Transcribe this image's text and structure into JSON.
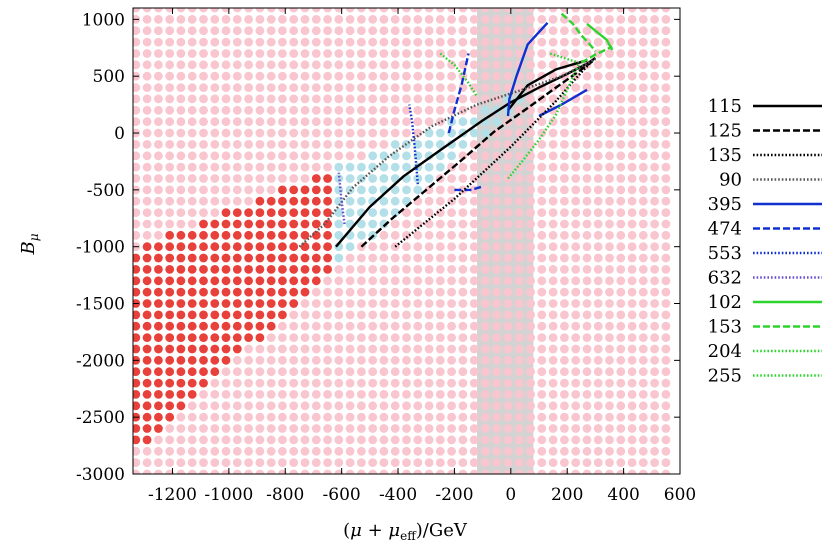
{
  "chart_data": {
    "type": "scatter",
    "title": "",
    "xlabel_parts": [
      "(",
      "μ",
      " + ",
      "μ",
      "eff",
      ")/GeV"
    ],
    "ylabel_parts": [
      "B",
      "μ"
    ],
    "xlim": [
      -1340,
      600
    ],
    "ylim": [
      -3000,
      1100
    ],
    "xticks": [
      -1200,
      -1000,
      -800,
      -600,
      -400,
      -200,
      0,
      200,
      400,
      600
    ],
    "xtick_labels": [
      "-1200",
      "-1000",
      "-800",
      "-600",
      "-400",
      "-200",
      "0",
      "200",
      "400",
      "600"
    ],
    "yticks": [
      -3000,
      -2500,
      -2000,
      -1500,
      -1000,
      -500,
      0,
      500,
      1000
    ],
    "ytick_labels": [
      "-3000",
      "-2500",
      "-2000",
      "-1500",
      "-1000",
      "-500",
      "0",
      "500",
      "1000"
    ],
    "grid": false,
    "legend_position": "right",
    "shaded_band": {
      "x_from": -120,
      "x_to": 80,
      "color": "#c8c8c8"
    },
    "scan": {
      "x_start": -1330,
      "x_step": 40,
      "x_count": 48,
      "y_start": -3000,
      "y_step": 100,
      "y_count": 42,
      "colors": {
        "excluded": "#f9c5cf",
        "red": "#e8413b",
        "purple": "#9b30e0",
        "blue": "#b3dfe8"
      }
    },
    "series": [
      {
        "name": "115",
        "color": "#000000",
        "dash": "solid",
        "points": [
          [
            -620,
            -1000
          ],
          [
            -500,
            -650
          ],
          [
            -380,
            -380
          ],
          [
            -250,
            -150
          ],
          [
            -100,
            110
          ],
          [
            0,
            270
          ],
          [
            100,
            400
          ],
          [
            200,
            520
          ],
          [
            270,
            610
          ],
          [
            300,
            660
          ]
        ]
      },
      {
        "name": "125",
        "color": "#000000",
        "dash": "dashed",
        "points": [
          [
            -530,
            -1000
          ],
          [
            -420,
            -750
          ],
          [
            -300,
            -500
          ],
          [
            -180,
            -250
          ],
          [
            -60,
            10
          ],
          [
            60,
            220
          ],
          [
            160,
            400
          ],
          [
            240,
            540
          ],
          [
            300,
            650
          ]
        ]
      },
      {
        "name": "135",
        "color": "#000000",
        "dash": "dotted",
        "points": [
          [
            -410,
            -1000
          ],
          [
            -300,
            -780
          ],
          [
            -200,
            -580
          ],
          [
            -100,
            -350
          ],
          [
            0,
            -120
          ],
          [
            80,
            80
          ],
          [
            160,
            280
          ],
          [
            230,
            480
          ],
          [
            290,
            640
          ]
        ]
      },
      {
        "name": "90",
        "color": "#555555",
        "dash": "dotted",
        "points": [
          [
            -750,
            -1000
          ],
          [
            -660,
            -800
          ],
          [
            -560,
            -480
          ],
          [
            -430,
            -200
          ],
          [
            -280,
            60
          ],
          [
            -120,
            250
          ],
          [
            40,
            380
          ],
          [
            180,
            500
          ],
          [
            300,
            650
          ]
        ]
      },
      {
        "name": "395",
        "color": "#1030d0",
        "dash": "solid",
        "points": [
          [
            -10,
            150
          ],
          [
            -5,
            300
          ],
          [
            20,
            500
          ],
          [
            60,
            780
          ],
          [
            130,
            970
          ]
        ]
      },
      {
        "name": "474",
        "color": "#1030d0",
        "dash": "dashed",
        "points": [
          [
            -220,
            0
          ],
          [
            -200,
            200
          ],
          [
            -175,
            420
          ],
          [
            -150,
            700
          ]
        ]
      },
      {
        "name": "553",
        "color": "#1030d0",
        "dash": "dotted",
        "points": [
          [
            -330,
            -450
          ],
          [
            -340,
            -150
          ],
          [
            -350,
            100
          ],
          [
            -360,
            250
          ]
        ]
      },
      {
        "name": "632",
        "color": "#6a4fd0",
        "dash": "dotted",
        "points": [
          [
            -590,
            -800
          ],
          [
            -600,
            -600
          ],
          [
            -610,
            -350
          ]
        ]
      },
      {
        "name": "102",
        "color": "#2ed42e",
        "dash": "solid",
        "points": [
          [
            270,
            960
          ],
          [
            310,
            880
          ],
          [
            340,
            820
          ],
          [
            360,
            730
          ]
        ]
      },
      {
        "name": "153",
        "color": "#2ed42e",
        "dash": "dashed",
        "points": [
          [
            180,
            1050
          ],
          [
            220,
            960
          ],
          [
            250,
            860
          ],
          [
            280,
            780
          ],
          [
            300,
            720
          ]
        ]
      },
      {
        "name": "204",
        "color": "#2ed42e",
        "dash": "dotted",
        "points": [
          [
            -10,
            -400
          ],
          [
            40,
            -250
          ],
          [
            100,
            -60
          ],
          [
            160,
            160
          ],
          [
            200,
            380
          ],
          [
            240,
            600
          ]
        ]
      },
      {
        "name": "255",
        "color": "#2ed42e",
        "dash": "dotted",
        "points": [
          [
            -250,
            700
          ],
          [
            -200,
            600
          ],
          [
            -150,
            440
          ],
          [
            -120,
            320
          ]
        ]
      }
    ],
    "extra_segments": [
      {
        "color": "#000000",
        "dash": "solid",
        "points": [
          [
            -10,
            200
          ],
          [
            60,
            420
          ],
          [
            160,
            560
          ],
          [
            270,
            640
          ]
        ]
      },
      {
        "color": "#1030d0",
        "dash": "solid",
        "points": [
          [
            100,
            150
          ],
          [
            180,
            250
          ],
          [
            270,
            380
          ]
        ]
      },
      {
        "color": "#1030d0",
        "dash": "dashed",
        "points": [
          [
            -200,
            -500
          ],
          [
            -140,
            -500
          ],
          [
            -100,
            -470
          ]
        ]
      },
      {
        "color": "#2ed42e",
        "dash": "dashed",
        "points": [
          [
            250,
            620
          ],
          [
            300,
            690
          ],
          [
            360,
            760
          ]
        ]
      },
      {
        "color": "#2ed42e",
        "dash": "dotted",
        "points": [
          [
            140,
            700
          ],
          [
            200,
            650
          ],
          [
            240,
            620
          ]
        ]
      }
    ]
  }
}
